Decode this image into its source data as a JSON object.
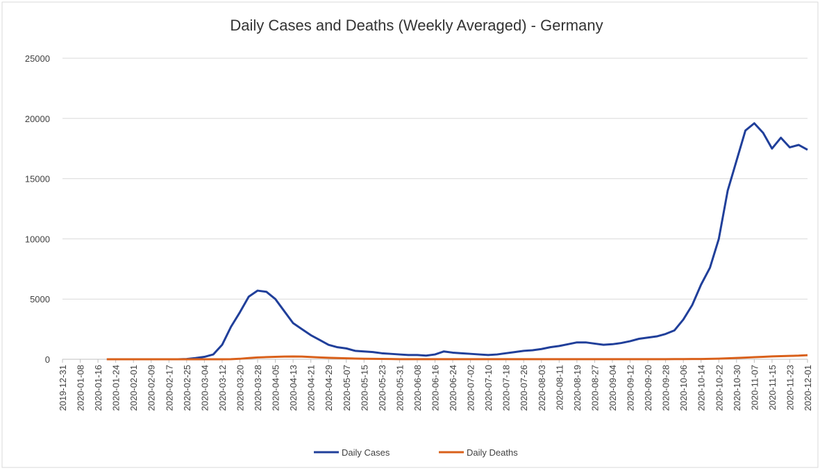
{
  "chart_data": {
    "type": "line",
    "title": "Daily Cases and Deaths (Weekly Averaged) - Germany",
    "x": [
      "2019-12-31",
      "2020-01-04",
      "2020-01-08",
      "2020-01-12",
      "2020-01-16",
      "2020-01-20",
      "2020-01-24",
      "2020-01-28",
      "2020-02-01",
      "2020-02-05",
      "2020-02-09",
      "2020-02-13",
      "2020-02-17",
      "2020-02-21",
      "2020-02-25",
      "2020-02-29",
      "2020-03-04",
      "2020-03-08",
      "2020-03-12",
      "2020-03-16",
      "2020-03-20",
      "2020-03-24",
      "2020-03-28",
      "2020-04-01",
      "2020-04-05",
      "2020-04-09",
      "2020-04-13",
      "2020-04-17",
      "2020-04-21",
      "2020-04-25",
      "2020-04-29",
      "2020-05-03",
      "2020-05-07",
      "2020-05-11",
      "2020-05-15",
      "2020-05-19",
      "2020-05-23",
      "2020-05-27",
      "2020-05-31",
      "2020-06-04",
      "2020-06-08",
      "2020-06-12",
      "2020-06-16",
      "2020-06-20",
      "2020-06-24",
      "2020-06-28",
      "2020-07-02",
      "2020-07-06",
      "2020-07-10",
      "2020-07-14",
      "2020-07-18",
      "2020-07-22",
      "2020-07-26",
      "2020-07-30",
      "2020-08-03",
      "2020-08-07",
      "2020-08-11",
      "2020-08-15",
      "2020-08-19",
      "2020-08-23",
      "2020-08-27",
      "2020-08-31",
      "2020-09-04",
      "2020-09-08",
      "2020-09-12",
      "2020-09-16",
      "2020-09-20",
      "2020-09-24",
      "2020-09-28",
      "2020-10-02",
      "2020-10-06",
      "2020-10-10",
      "2020-10-14",
      "2020-10-18",
      "2020-10-22",
      "2020-10-26",
      "2020-10-30",
      "2020-11-03",
      "2020-11-07",
      "2020-11-11",
      "2020-11-15",
      "2020-11-19",
      "2020-11-23",
      "2020-11-27",
      "2020-12-01"
    ],
    "series": [
      {
        "name": "Daily Cases",
        "color": "#203f9a",
        "values": [
          null,
          null,
          null,
          null,
          null,
          0,
          0,
          0,
          0,
          0,
          0,
          0,
          0,
          0,
          20,
          100,
          200,
          400,
          1200,
          2700,
          3900,
          5200,
          5700,
          5600,
          5000,
          4000,
          3000,
          2500,
          2000,
          1600,
          1200,
          1000,
          900,
          700,
          650,
          600,
          500,
          450,
          400,
          350,
          350,
          300,
          400,
          650,
          550,
          500,
          450,
          400,
          350,
          400,
          500,
          600,
          700,
          750,
          850,
          1000,
          1100,
          1250,
          1400,
          1400,
          1300,
          1200,
          1250,
          1350,
          1500,
          1700,
          1800,
          1900,
          2100,
          2400,
          3300,
          4500,
          6200,
          7600,
          10000,
          14000,
          16500,
          19000,
          19600,
          18800,
          17500,
          18400,
          17600,
          17800,
          17400
        ]
      },
      {
        "name": "Daily Deaths",
        "color": "#d9601a",
        "values": [
          null,
          null,
          null,
          null,
          null,
          0,
          0,
          0,
          0,
          0,
          0,
          0,
          0,
          0,
          0,
          0,
          0,
          0,
          0,
          10,
          40,
          100,
          150,
          180,
          200,
          220,
          230,
          220,
          190,
          150,
          120,
          100,
          80,
          60,
          45,
          35,
          30,
          25,
          10,
          10,
          10,
          10,
          10,
          10,
          10,
          10,
          10,
          10,
          10,
          10,
          10,
          10,
          10,
          10,
          10,
          10,
          10,
          10,
          10,
          10,
          10,
          10,
          10,
          10,
          10,
          10,
          10,
          10,
          10,
          15,
          15,
          20,
          25,
          35,
          50,
          80,
          110,
          140,
          170,
          200,
          240,
          260,
          280,
          300,
          340
        ]
      }
    ],
    "xlim": [
      "2019-12-31",
      "2020-12-01"
    ],
    "xticks": [
      "2019-12-31",
      "2020-01-08",
      "2020-01-16",
      "2020-01-24",
      "2020-02-01",
      "2020-02-09",
      "2020-02-17",
      "2020-02-25",
      "2020-03-04",
      "2020-03-12",
      "2020-03-20",
      "2020-03-28",
      "2020-04-05",
      "2020-04-13",
      "2020-04-21",
      "2020-04-29",
      "2020-05-07",
      "2020-05-15",
      "2020-05-23",
      "2020-05-31",
      "2020-06-08",
      "2020-06-16",
      "2020-06-24",
      "2020-07-02",
      "2020-07-10",
      "2020-07-18",
      "2020-07-26",
      "2020-08-03",
      "2020-08-11",
      "2020-08-19",
      "2020-08-27",
      "2020-09-04",
      "2020-09-12",
      "2020-09-20",
      "2020-09-28",
      "2020-10-06",
      "2020-10-14",
      "2020-10-22",
      "2020-10-30",
      "2020-11-07",
      "2020-11-15",
      "2020-11-23",
      "2020-12-01"
    ],
    "ylim": [
      0,
      25000
    ],
    "yticks": [
      0,
      5000,
      10000,
      15000,
      20000,
      25000
    ],
    "grid": true,
    "legend": "bottom"
  }
}
